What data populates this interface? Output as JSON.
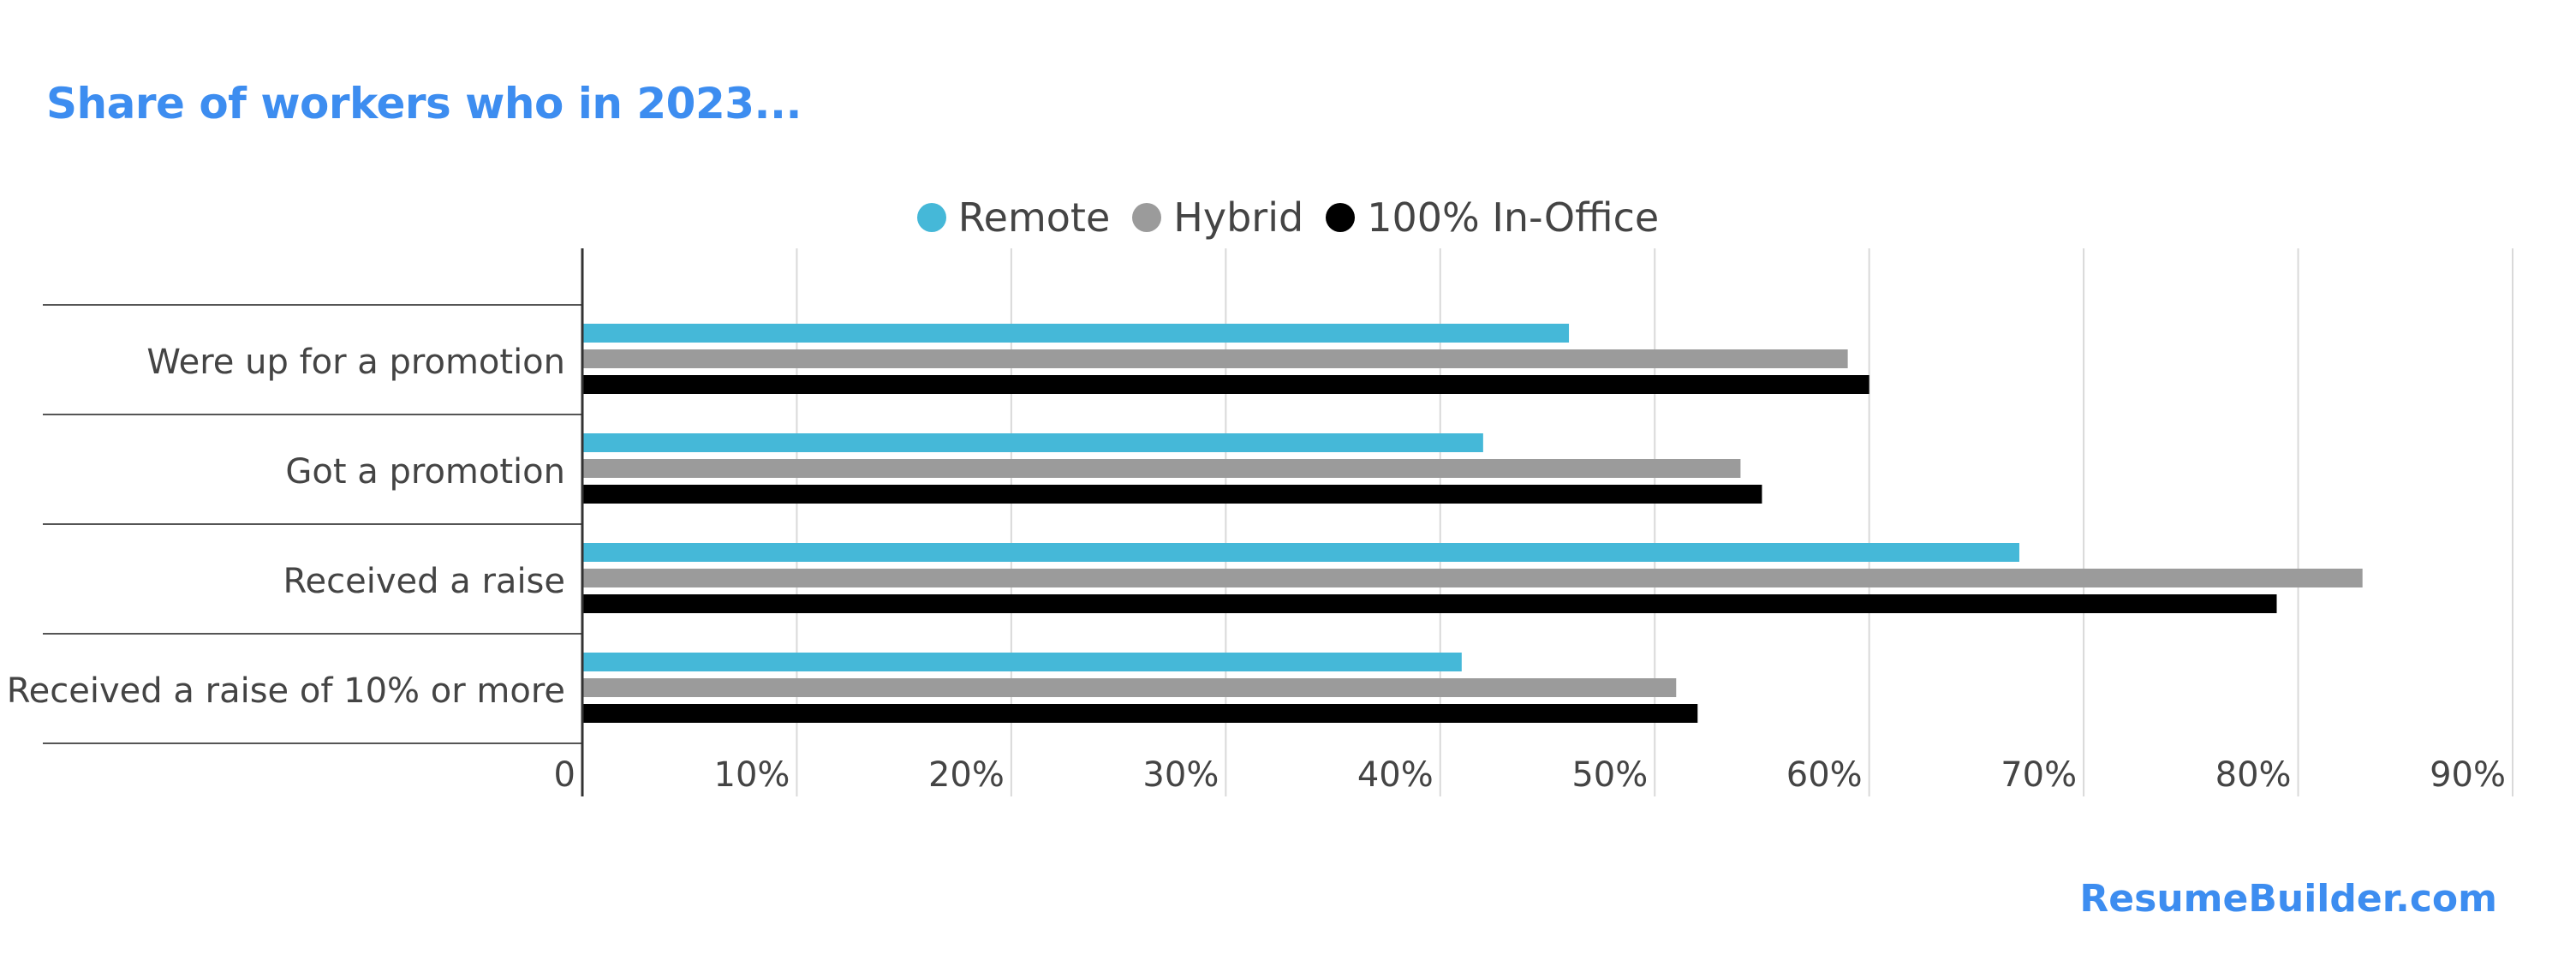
{
  "title": "Share of workers who in 2023...",
  "source": "ResumeBuilder.com",
  "chart_data": {
    "type": "bar",
    "orientation": "horizontal",
    "title": "Share of workers who in 2023...",
    "categories": [
      "Were up for a promotion",
      "Got a promotion",
      "Received a raise",
      "Received a raise of 10% or more"
    ],
    "series": [
      {
        "name": "Remote",
        "color": "#45b8d8",
        "values": [
          46,
          42,
          67,
          41
        ]
      },
      {
        "name": "Hybrid",
        "color": "#9b9b9b",
        "values": [
          59,
          54,
          83,
          51
        ]
      },
      {
        "name": "100% In-Office",
        "color": "#000000",
        "values": [
          60,
          55,
          79,
          52
        ]
      }
    ],
    "x_ticks": [
      "0",
      "10%",
      "20%",
      "30%",
      "40%",
      "50%",
      "60%",
      "70%",
      "80%",
      "90%"
    ],
    "xlim": [
      0,
      90
    ],
    "grid": true,
    "legend_position": "top-center",
    "xlabel": "",
    "ylabel": ""
  }
}
